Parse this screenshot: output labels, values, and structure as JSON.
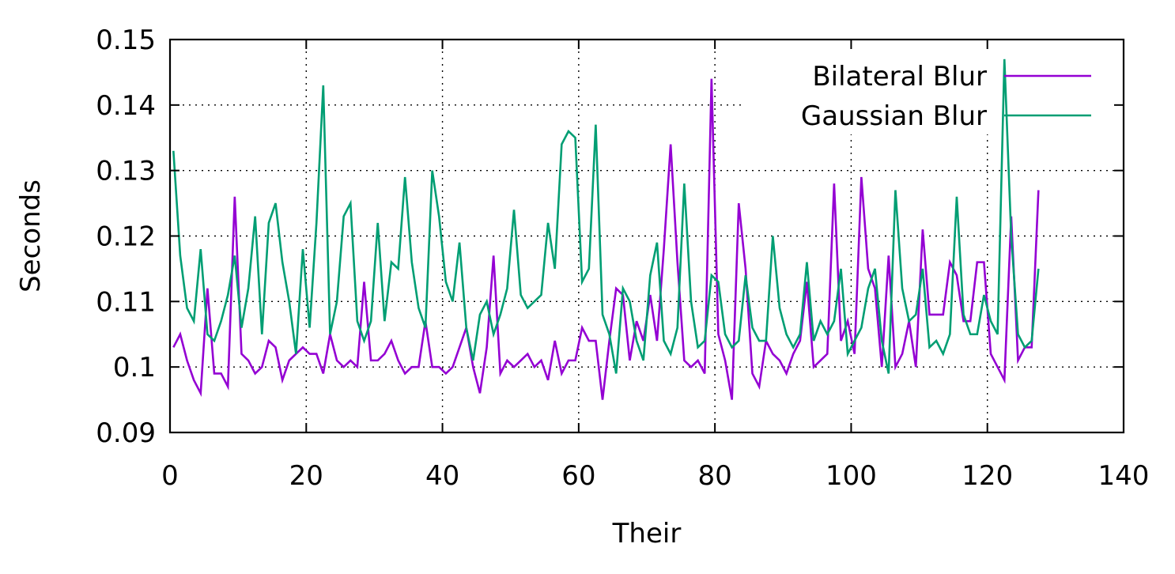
{
  "chart_data": {
    "type": "line",
    "xlabel": "Their",
    "ylabel": "Seconds",
    "xlim": [
      0,
      140
    ],
    "ylim": [
      0.09,
      0.15
    ],
    "xticks": [
      "0",
      "20",
      "40",
      "60",
      "80",
      "100",
      "120",
      "140"
    ],
    "yticks": [
      "0.09",
      "0.1",
      "0.11",
      "0.12",
      "0.13",
      "0.14",
      "0.15"
    ],
    "grid": true,
    "legend_position": "top-right",
    "x": [
      0,
      1,
      2,
      3,
      4,
      5,
      6,
      7,
      8,
      9,
      10,
      11,
      12,
      13,
      14,
      15,
      16,
      17,
      18,
      19,
      20,
      21,
      22,
      23,
      24,
      25,
      26,
      27,
      28,
      29,
      30,
      31,
      32,
      33,
      34,
      35,
      36,
      37,
      38,
      39,
      40,
      41,
      42,
      43,
      44,
      45,
      46,
      47,
      48,
      49,
      50,
      51,
      52,
      53,
      54,
      55,
      56,
      57,
      58,
      59,
      60,
      61,
      62,
      63,
      64,
      65,
      66,
      67,
      68,
      69,
      70,
      71,
      72,
      73,
      74,
      75,
      76,
      77,
      78,
      79,
      80,
      81,
      82,
      83,
      84,
      85,
      86,
      87,
      88,
      89,
      90,
      91,
      92,
      93,
      94,
      95,
      96,
      97,
      98,
      99,
      100,
      101,
      102,
      103,
      104,
      105,
      106,
      107,
      108,
      109,
      110,
      111,
      112,
      113,
      114,
      115,
      116,
      117,
      118,
      119,
      120,
      121,
      122,
      123,
      124,
      125,
      126,
      127
    ],
    "series": [
      {
        "name": "Bilateral Blur",
        "color": "#9400d3",
        "values": [
          0.103,
          0.105,
          0.101,
          0.098,
          0.096,
          0.112,
          0.099,
          0.099,
          0.097,
          0.126,
          0.102,
          0.101,
          0.099,
          0.1,
          0.104,
          0.103,
          0.098,
          0.101,
          0.102,
          0.103,
          0.102,
          0.102,
          0.099,
          0.105,
          0.101,
          0.1,
          0.101,
          0.1,
          0.113,
          0.101,
          0.101,
          0.102,
          0.104,
          0.101,
          0.099,
          0.1,
          0.1,
          0.107,
          0.1,
          0.1,
          0.099,
          0.1,
          0.103,
          0.106,
          0.1,
          0.096,
          0.103,
          0.117,
          0.099,
          0.101,
          0.1,
          0.101,
          0.102,
          0.1,
          0.101,
          0.098,
          0.104,
          0.099,
          0.101,
          0.101,
          0.106,
          0.104,
          0.104,
          0.095,
          0.104,
          0.112,
          0.111,
          0.101,
          0.107,
          0.104,
          0.111,
          0.104,
          0.118,
          0.134,
          0.116,
          0.101,
          0.1,
          0.101,
          0.099,
          0.144,
          0.105,
          0.101,
          0.095,
          0.125,
          0.115,
          0.099,
          0.097,
          0.104,
          0.102,
          0.101,
          0.099,
          0.102,
          0.104,
          0.113,
          0.1,
          0.101,
          0.102,
          0.128,
          0.104,
          0.107,
          0.102,
          0.129,
          0.115,
          0.112,
          0.1,
          0.117,
          0.1,
          0.102,
          0.107,
          0.1,
          0.121,
          0.108,
          0.108,
          0.108,
          0.116,
          0.114,
          0.107,
          0.107,
          0.116,
          0.116,
          0.102,
          0.1,
          0.098,
          0.123,
          0.101,
          0.103,
          0.103,
          0.127
        ]
      },
      {
        "name": "Gaussian Blur",
        "color": "#009e73",
        "values": [
          0.133,
          0.117,
          0.109,
          0.107,
          0.118,
          0.105,
          0.104,
          0.107,
          0.111,
          0.117,
          0.106,
          0.112,
          0.123,
          0.105,
          0.122,
          0.125,
          0.116,
          0.11,
          0.102,
          0.118,
          0.106,
          0.122,
          0.143,
          0.105,
          0.11,
          0.123,
          0.125,
          0.107,
          0.104,
          0.107,
          0.122,
          0.107,
          0.116,
          0.115,
          0.129,
          0.116,
          0.109,
          0.106,
          0.13,
          0.123,
          0.113,
          0.11,
          0.119,
          0.106,
          0.101,
          0.108,
          0.11,
          0.105,
          0.108,
          0.112,
          0.124,
          0.111,
          0.109,
          0.11,
          0.111,
          0.122,
          0.115,
          0.134,
          0.136,
          0.135,
          0.113,
          0.115,
          0.137,
          0.108,
          0.105,
          0.099,
          0.112,
          0.11,
          0.104,
          0.101,
          0.114,
          0.119,
          0.104,
          0.102,
          0.106,
          0.128,
          0.11,
          0.103,
          0.104,
          0.114,
          0.113,
          0.105,
          0.103,
          0.104,
          0.114,
          0.106,
          0.104,
          0.104,
          0.12,
          0.109,
          0.105,
          0.103,
          0.105,
          0.116,
          0.104,
          0.107,
          0.105,
          0.107,
          0.115,
          0.102,
          0.104,
          0.106,
          0.112,
          0.115,
          0.104,
          0.099,
          0.127,
          0.112,
          0.107,
          0.108,
          0.115,
          0.103,
          0.104,
          0.102,
          0.105,
          0.126,
          0.108,
          0.105,
          0.105,
          0.111,
          0.107,
          0.105,
          0.147,
          0.12,
          0.105,
          0.103,
          0.104,
          0.115
        ]
      }
    ]
  }
}
